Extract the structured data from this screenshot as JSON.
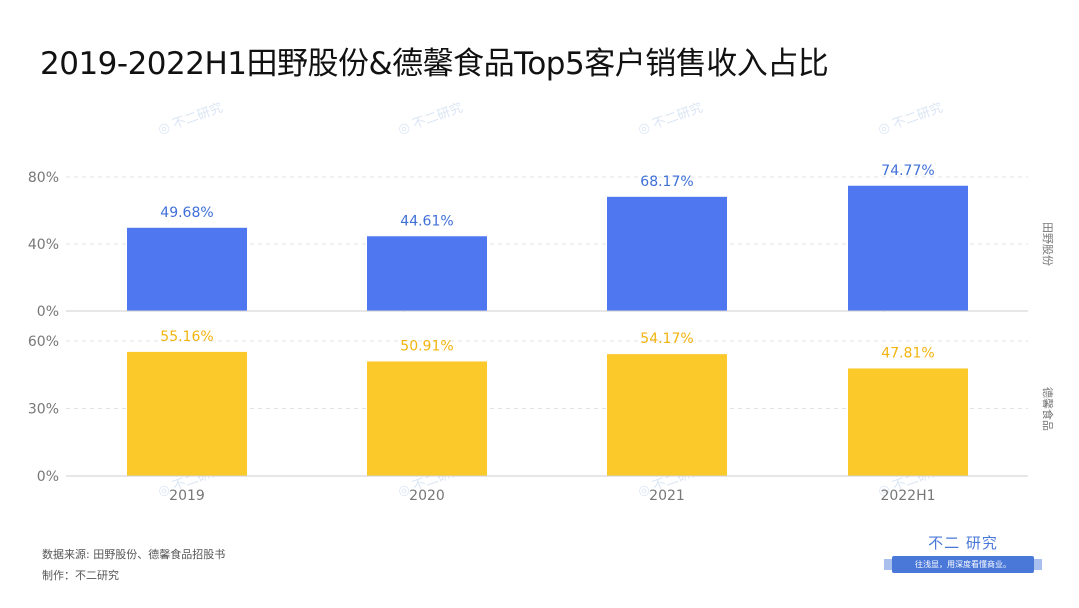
{
  "title": "2019-2022H1田野股份&德馨食品Top5客户销售收入占比",
  "watermark_text": "不二研究",
  "source": "数据来源: 田野股份、德馨食品招股书",
  "maker": "制作：不二研究",
  "brand": {
    "name": "不二 研究",
    "slogan": "往浅显，用深度看懂商业。"
  },
  "colors": {
    "series_1": "#4e77f0",
    "series_1_label": "#3f6fd8",
    "series_2": "#fcc92b",
    "series_2_label": "#f2b40f",
    "brand": "#4a78d9"
  },
  "chart_data": {
    "type": "bar",
    "categories": [
      "2019",
      "2020",
      "2021",
      "2022H1"
    ],
    "grid": true,
    "panels": [
      {
        "name": "田野股份",
        "values": [
          49.68,
          44.61,
          68.17,
          74.77
        ],
        "value_labels": [
          "49.68%",
          "44.61%",
          "68.17%",
          "74.77%"
        ],
        "ylim": [
          0,
          80
        ],
        "yticks": [
          0,
          40,
          80
        ],
        "ytick_labels": [
          "0%",
          "40%",
          "80%"
        ]
      },
      {
        "name": "德馨食品",
        "values": [
          55.16,
          50.91,
          54.17,
          47.81
        ],
        "value_labels": [
          "55.16%",
          "50.91%",
          "54.17%",
          "47.81%"
        ],
        "ylim": [
          0,
          60
        ],
        "yticks": [
          0,
          30,
          60
        ],
        "ytick_labels": [
          "0%",
          "30%",
          "60%"
        ]
      }
    ]
  }
}
